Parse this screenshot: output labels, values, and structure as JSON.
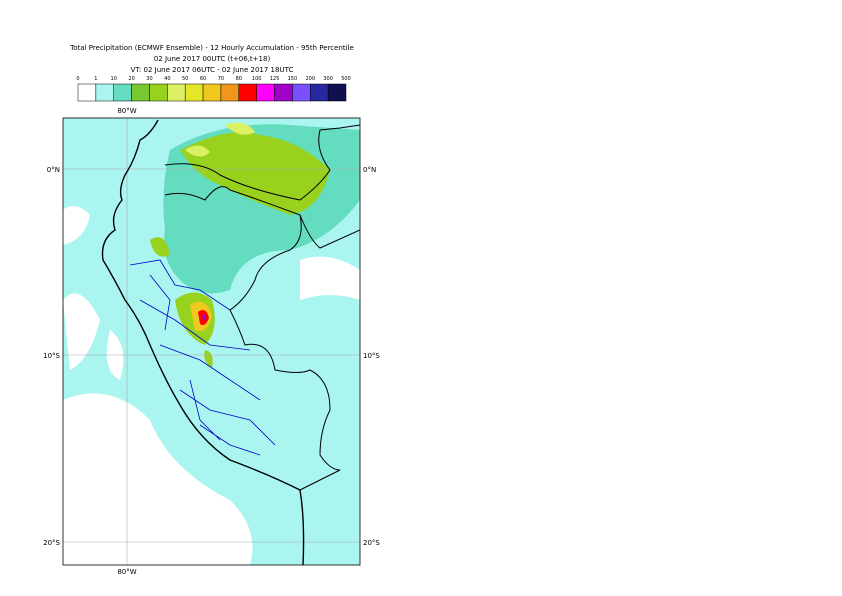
{
  "title": {
    "lines": [
      "Total Precipitation (ECMWF Ensemble) - 12 Hourly Accumulation - 95th Percentile",
      "02 June 2017 00UTC (t+06,t+18)",
      "VT: 02 June 2017 06UTC - 02 June 2017 18UTC"
    ]
  },
  "legend": {
    "labels": [
      "0",
      "1",
      "10",
      "20",
      "30",
      "40",
      "50",
      "60",
      "70",
      "80",
      "100",
      "125",
      "150",
      "200",
      "300",
      "500"
    ],
    "colors": [
      "#ffffff",
      "#aaf5f0",
      "#64dcc0",
      "#78c832",
      "#98d21e",
      "#dcf064",
      "#e6e628",
      "#f0c81e",
      "#f0961e",
      "#ff0000",
      "#ff00ff",
      "#a000c8",
      "#7850ff",
      "#2828a0",
      "#101050"
    ]
  },
  "axes": {
    "top": "80°W",
    "bottom": "80°W",
    "left": [
      "0°N",
      "10°S",
      "20°S"
    ],
    "right": [
      "0°N",
      "10°S",
      "20°S"
    ]
  }
}
